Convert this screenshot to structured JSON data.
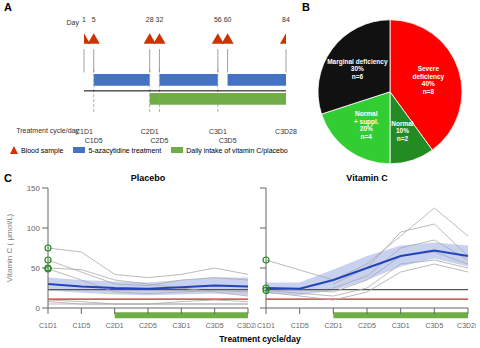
{
  "chart_data": [
    {
      "type": "timeline",
      "title": "A",
      "xlim": [
        1,
        84
      ],
      "xticks": [
        1,
        5,
        28,
        32,
        56,
        60,
        84
      ],
      "categories": [
        "C1D1",
        "C1D5",
        "C2D1",
        "C2D5",
        "C3D1",
        "C3D5",
        "C3D28"
      ],
      "xlabel": "Day",
      "category_label": "Treatment cycle/day",
      "dashed_lines": [
        5,
        28,
        32,
        56
      ],
      "series": [
        {
          "name": "Blood sample",
          "color": "#CC3300",
          "marker": "triangle",
          "x": [
            1,
            5,
            28,
            32,
            56,
            60,
            84
          ]
        },
        {
          "name": "5-azacytidine treatment",
          "color": "#4472C4",
          "ranges": [
            [
              5,
              28
            ],
            [
              32,
              56
            ],
            [
              60,
              84
            ]
          ]
        },
        {
          "name": "Daily intake of vitamin C/placebo",
          "color": "#70AD47",
          "ranges": [
            [
              28,
              84
            ]
          ]
        }
      ]
    },
    {
      "type": "pie",
      "title": "B",
      "categories": [
        "Severe\ndeficiency",
        "Normal",
        "Normal\n+ suppl.",
        "Marginal deficiency"
      ],
      "values": [
        40,
        10,
        20,
        30
      ],
      "value_labels": [
        "40%",
        "10%",
        "20%",
        "30%"
      ],
      "count_labels": [
        "n=8",
        "n=2",
        "n=4",
        "n=6"
      ],
      "colors": [
        "#FF0000",
        "#228B22",
        "#32CD32",
        "#111111"
      ],
      "data_labels": true
    },
    {
      "type": "line",
      "title": "C",
      "categories": [
        "C1D1",
        "C1D5",
        "C2D1",
        "C2D5",
        "C3D1",
        "C3D5",
        "C3D28"
      ],
      "xlabel": "Treatment cycle/day",
      "ylabel": "Vitamin C ( μmol/L)",
      "ylim": [
        0,
        150
      ],
      "yticks": [
        0,
        50,
        100,
        150
      ],
      "reference_lines": [
        {
          "value": 23,
          "color": "#555555"
        },
        {
          "value": 11,
          "color": "#CC2222"
        }
      ],
      "treatment_bar": {
        "from": "C2D1",
        "to": "C3D28",
        "color": "#70AD47"
      },
      "panels": [
        {
          "title": "Placebo",
          "mean": {
            "color": "#2244BB",
            "values": [
              30,
              27,
              25,
              24,
              26,
              28,
              27
            ]
          },
          "ci": {
            "color": "#8899DD",
            "lower": [
              22,
              19,
              17,
              16,
              17,
              18,
              16
            ],
            "upper": [
              38,
              35,
              33,
              32,
              35,
              38,
              38
            ]
          },
          "individuals": {
            "color": "#AAAAAA",
            "values": [
              [
                75,
                70,
                42,
                38,
                42,
                50,
                42
              ],
              [
                60,
                null,
                30,
                28,
                35,
                38,
                35
              ],
              [
                50,
                48,
                35,
                30,
                25,
                20,
                15
              ],
              [
                49,
                35,
                20,
                18,
                20,
                22,
                20
              ],
              [
                10,
                8,
                5,
                5,
                8,
                10,
                8
              ],
              [
                8,
                5,
                5,
                5,
                5,
                5,
                5
              ],
              [
                5,
                5,
                5,
                5,
                5,
                5,
                5
              ]
            ]
          },
          "outliers": {
            "color": "#228B22",
            "marker": "circle",
            "points": [
              {
                "x": "C1D1",
                "y": 75
              },
              {
                "x": "C1D1",
                "y": 60
              },
              {
                "x": "C1D1",
                "y": 50
              },
              {
                "x": "C1D1",
                "y": 49
              }
            ]
          }
        },
        {
          "title": "Vitamin C",
          "tick_labels": "x",
          "mean": {
            "color": "#2244BB",
            "values": [
              25,
              24,
              35,
              50,
              65,
              72,
              65
            ]
          },
          "ci": {
            "color": "#8899DD",
            "lower": [
              18,
              16,
              22,
              35,
              52,
              62,
              52
            ],
            "upper": [
              32,
              32,
              48,
              65,
              78,
              82,
              78
            ]
          },
          "individuals": {
            "color": "#AAAAAA",
            "values": [
              [
                60,
                null,
                35,
                55,
                90,
                125,
                90
              ],
              [
                null,
                null,
                30,
                50,
                95,
                105,
                65
              ],
              [
                null,
                null,
                25,
                40,
                75,
                85,
                60
              ],
              [
                25,
                null,
                20,
                35,
                65,
                70,
                55
              ],
              [
                22,
                null,
                15,
                25,
                55,
                60,
                50
              ],
              [
                20,
                null,
                10,
                20,
                45,
                55,
                45
              ]
            ]
          },
          "outliers": {
            "color": "#228B22",
            "marker": "circle",
            "points": [
              {
                "x": "C1D1",
                "y": 60
              },
              {
                "x": "C1D1",
                "y": 25
              },
              {
                "x": "C1D1",
                "y": 22
              }
            ]
          }
        }
      ]
    }
  ]
}
